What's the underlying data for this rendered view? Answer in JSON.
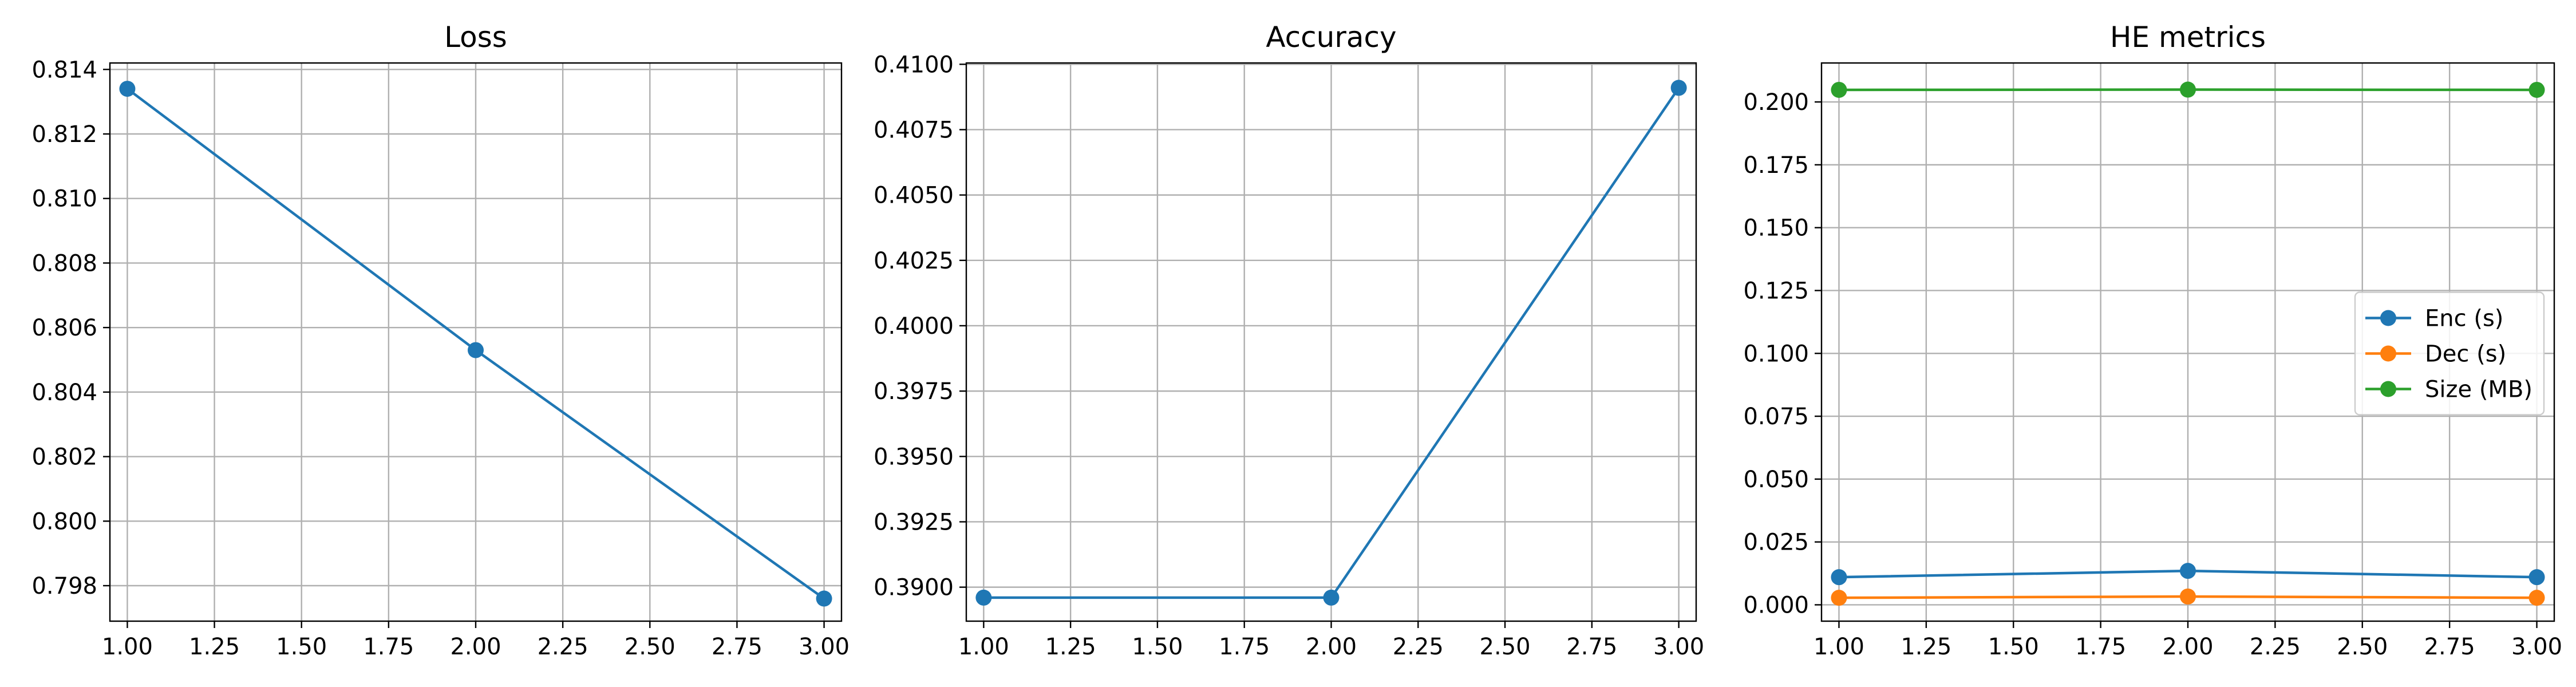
{
  "chart_data": [
    {
      "type": "line",
      "title": "Loss",
      "xlabel": "",
      "ylabel": "",
      "xlim": [
        0.95,
        3.05
      ],
      "ylim": [
        0.7969,
        0.8142
      ],
      "xticks": [
        1.0,
        1.25,
        1.5,
        1.75,
        2.0,
        2.25,
        2.5,
        2.75,
        3.0
      ],
      "xtick_labels": [
        "1.00",
        "1.25",
        "1.50",
        "1.75",
        "2.00",
        "2.25",
        "2.50",
        "2.75",
        "3.00"
      ],
      "yticks": [
        0.798,
        0.8,
        0.802,
        0.804,
        0.806,
        0.808,
        0.81,
        0.812,
        0.814
      ],
      "ytick_labels": [
        "0.798",
        "0.800",
        "0.802",
        "0.804",
        "0.806",
        "0.808",
        "0.810",
        "0.812",
        "0.814"
      ],
      "grid": true,
      "series": [
        {
          "color": "#1f77b4",
          "x": [
            1,
            2,
            3
          ],
          "values": [
            0.8134,
            0.8053,
            0.7976
          ]
        }
      ]
    },
    {
      "type": "line",
      "title": "Accuracy",
      "xlabel": "",
      "ylabel": "",
      "xlim": [
        0.95,
        3.05
      ],
      "ylim": [
        0.3887,
        0.41005
      ],
      "xticks": [
        1.0,
        1.25,
        1.5,
        1.75,
        2.0,
        2.25,
        2.5,
        2.75,
        3.0
      ],
      "xtick_labels": [
        "1.00",
        "1.25",
        "1.50",
        "1.75",
        "2.00",
        "2.25",
        "2.50",
        "2.75",
        "3.00"
      ],
      "yticks": [
        0.39,
        0.3925,
        0.395,
        0.3975,
        0.4,
        0.4025,
        0.405,
        0.4075,
        0.41
      ],
      "ytick_labels": [
        "0.3900",
        "0.3925",
        "0.3950",
        "0.3975",
        "0.4000",
        "0.4025",
        "0.4050",
        "0.4075",
        "0.4100"
      ],
      "grid": true,
      "series": [
        {
          "color": "#1f77b4",
          "x": [
            1,
            2,
            3
          ],
          "values": [
            0.3896,
            0.3896,
            0.4091
          ]
        }
      ]
    },
    {
      "type": "line",
      "title": "HE metrics",
      "xlabel": "",
      "ylabel": "",
      "xlim": [
        0.95,
        3.05
      ],
      "ylim": [
        -0.0065,
        0.2155
      ],
      "xticks": [
        1.0,
        1.25,
        1.5,
        1.75,
        2.0,
        2.25,
        2.5,
        2.75,
        3.0
      ],
      "xtick_labels": [
        "1.00",
        "1.25",
        "1.50",
        "1.75",
        "2.00",
        "2.25",
        "2.50",
        "2.75",
        "3.00"
      ],
      "yticks": [
        0.0,
        0.025,
        0.05,
        0.075,
        0.1,
        0.125,
        0.15,
        0.175,
        0.2
      ],
      "ytick_labels": [
        "0.000",
        "0.025",
        "0.050",
        "0.075",
        "0.100",
        "0.125",
        "0.150",
        "0.175",
        "0.200"
      ],
      "grid": true,
      "legend": "center-right",
      "series": [
        {
          "name": "Enc (s)",
          "color": "#1f77b4",
          "x": [
            1,
            2,
            3
          ],
          "values": [
            0.011,
            0.0135,
            0.011
          ]
        },
        {
          "name": "Dec (s)",
          "color": "#ff7f0e",
          "x": [
            1,
            2,
            3
          ],
          "values": [
            0.0028,
            0.0033,
            0.0028
          ]
        },
        {
          "name": "Size (MB)",
          "color": "#2ca02c",
          "x": [
            1,
            2,
            3
          ],
          "values": [
            0.2048,
            0.2049,
            0.2048
          ]
        }
      ]
    }
  ]
}
